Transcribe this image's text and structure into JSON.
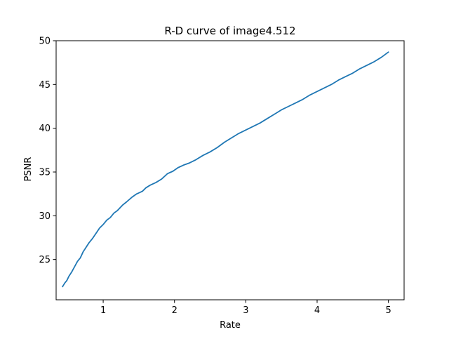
{
  "chart_data": {
    "type": "line",
    "title": "R-D curve of image4.512",
    "xlabel": "Rate",
    "ylabel": "PSNR",
    "xlim": [
      0.34,
      5.22
    ],
    "ylim": [
      20.4,
      50
    ],
    "xticks": [
      1,
      2,
      3,
      4,
      5
    ],
    "yticks": [
      25,
      30,
      35,
      40,
      45,
      50
    ],
    "grid": false,
    "colors": {
      "line": "#1f77b4"
    },
    "series": [
      {
        "x": [
          0.43,
          0.46,
          0.49,
          0.52,
          0.56,
          0.6,
          0.64,
          0.68,
          0.72,
          0.76,
          0.8,
          0.85,
          0.9,
          0.95,
          1.0,
          1.05,
          1.1,
          1.15,
          1.2,
          1.27,
          1.33,
          1.4,
          1.47,
          1.55,
          1.6,
          1.66,
          1.74,
          1.82,
          1.9,
          1.98,
          2.05,
          2.13,
          2.2,
          2.3,
          2.4,
          2.5,
          2.6,
          2.7,
          2.8,
          2.9,
          3.0,
          3.1,
          3.2,
          3.3,
          3.4,
          3.5,
          3.6,
          3.7,
          3.8,
          3.9,
          4.0,
          4.1,
          4.2,
          4.3,
          4.4,
          4.5,
          4.6,
          4.7,
          4.8,
          4.9,
          5.0
        ],
        "y": [
          21.9,
          22.3,
          22.6,
          23.1,
          23.6,
          24.2,
          24.8,
          25.2,
          25.9,
          26.4,
          26.9,
          27.4,
          28.0,
          28.6,
          29.0,
          29.5,
          29.8,
          30.3,
          30.6,
          31.2,
          31.6,
          32.1,
          32.5,
          32.8,
          33.2,
          33.5,
          33.8,
          34.2,
          34.8,
          35.1,
          35.5,
          35.8,
          36.0,
          36.4,
          36.9,
          37.3,
          37.8,
          38.4,
          38.9,
          39.4,
          39.8,
          40.2,
          40.6,
          41.1,
          41.6,
          42.1,
          42.5,
          42.9,
          43.3,
          43.8,
          44.2,
          44.6,
          45.0,
          45.5,
          45.9,
          46.3,
          46.8,
          47.2,
          47.6,
          48.1,
          48.7
        ]
      }
    ]
  }
}
